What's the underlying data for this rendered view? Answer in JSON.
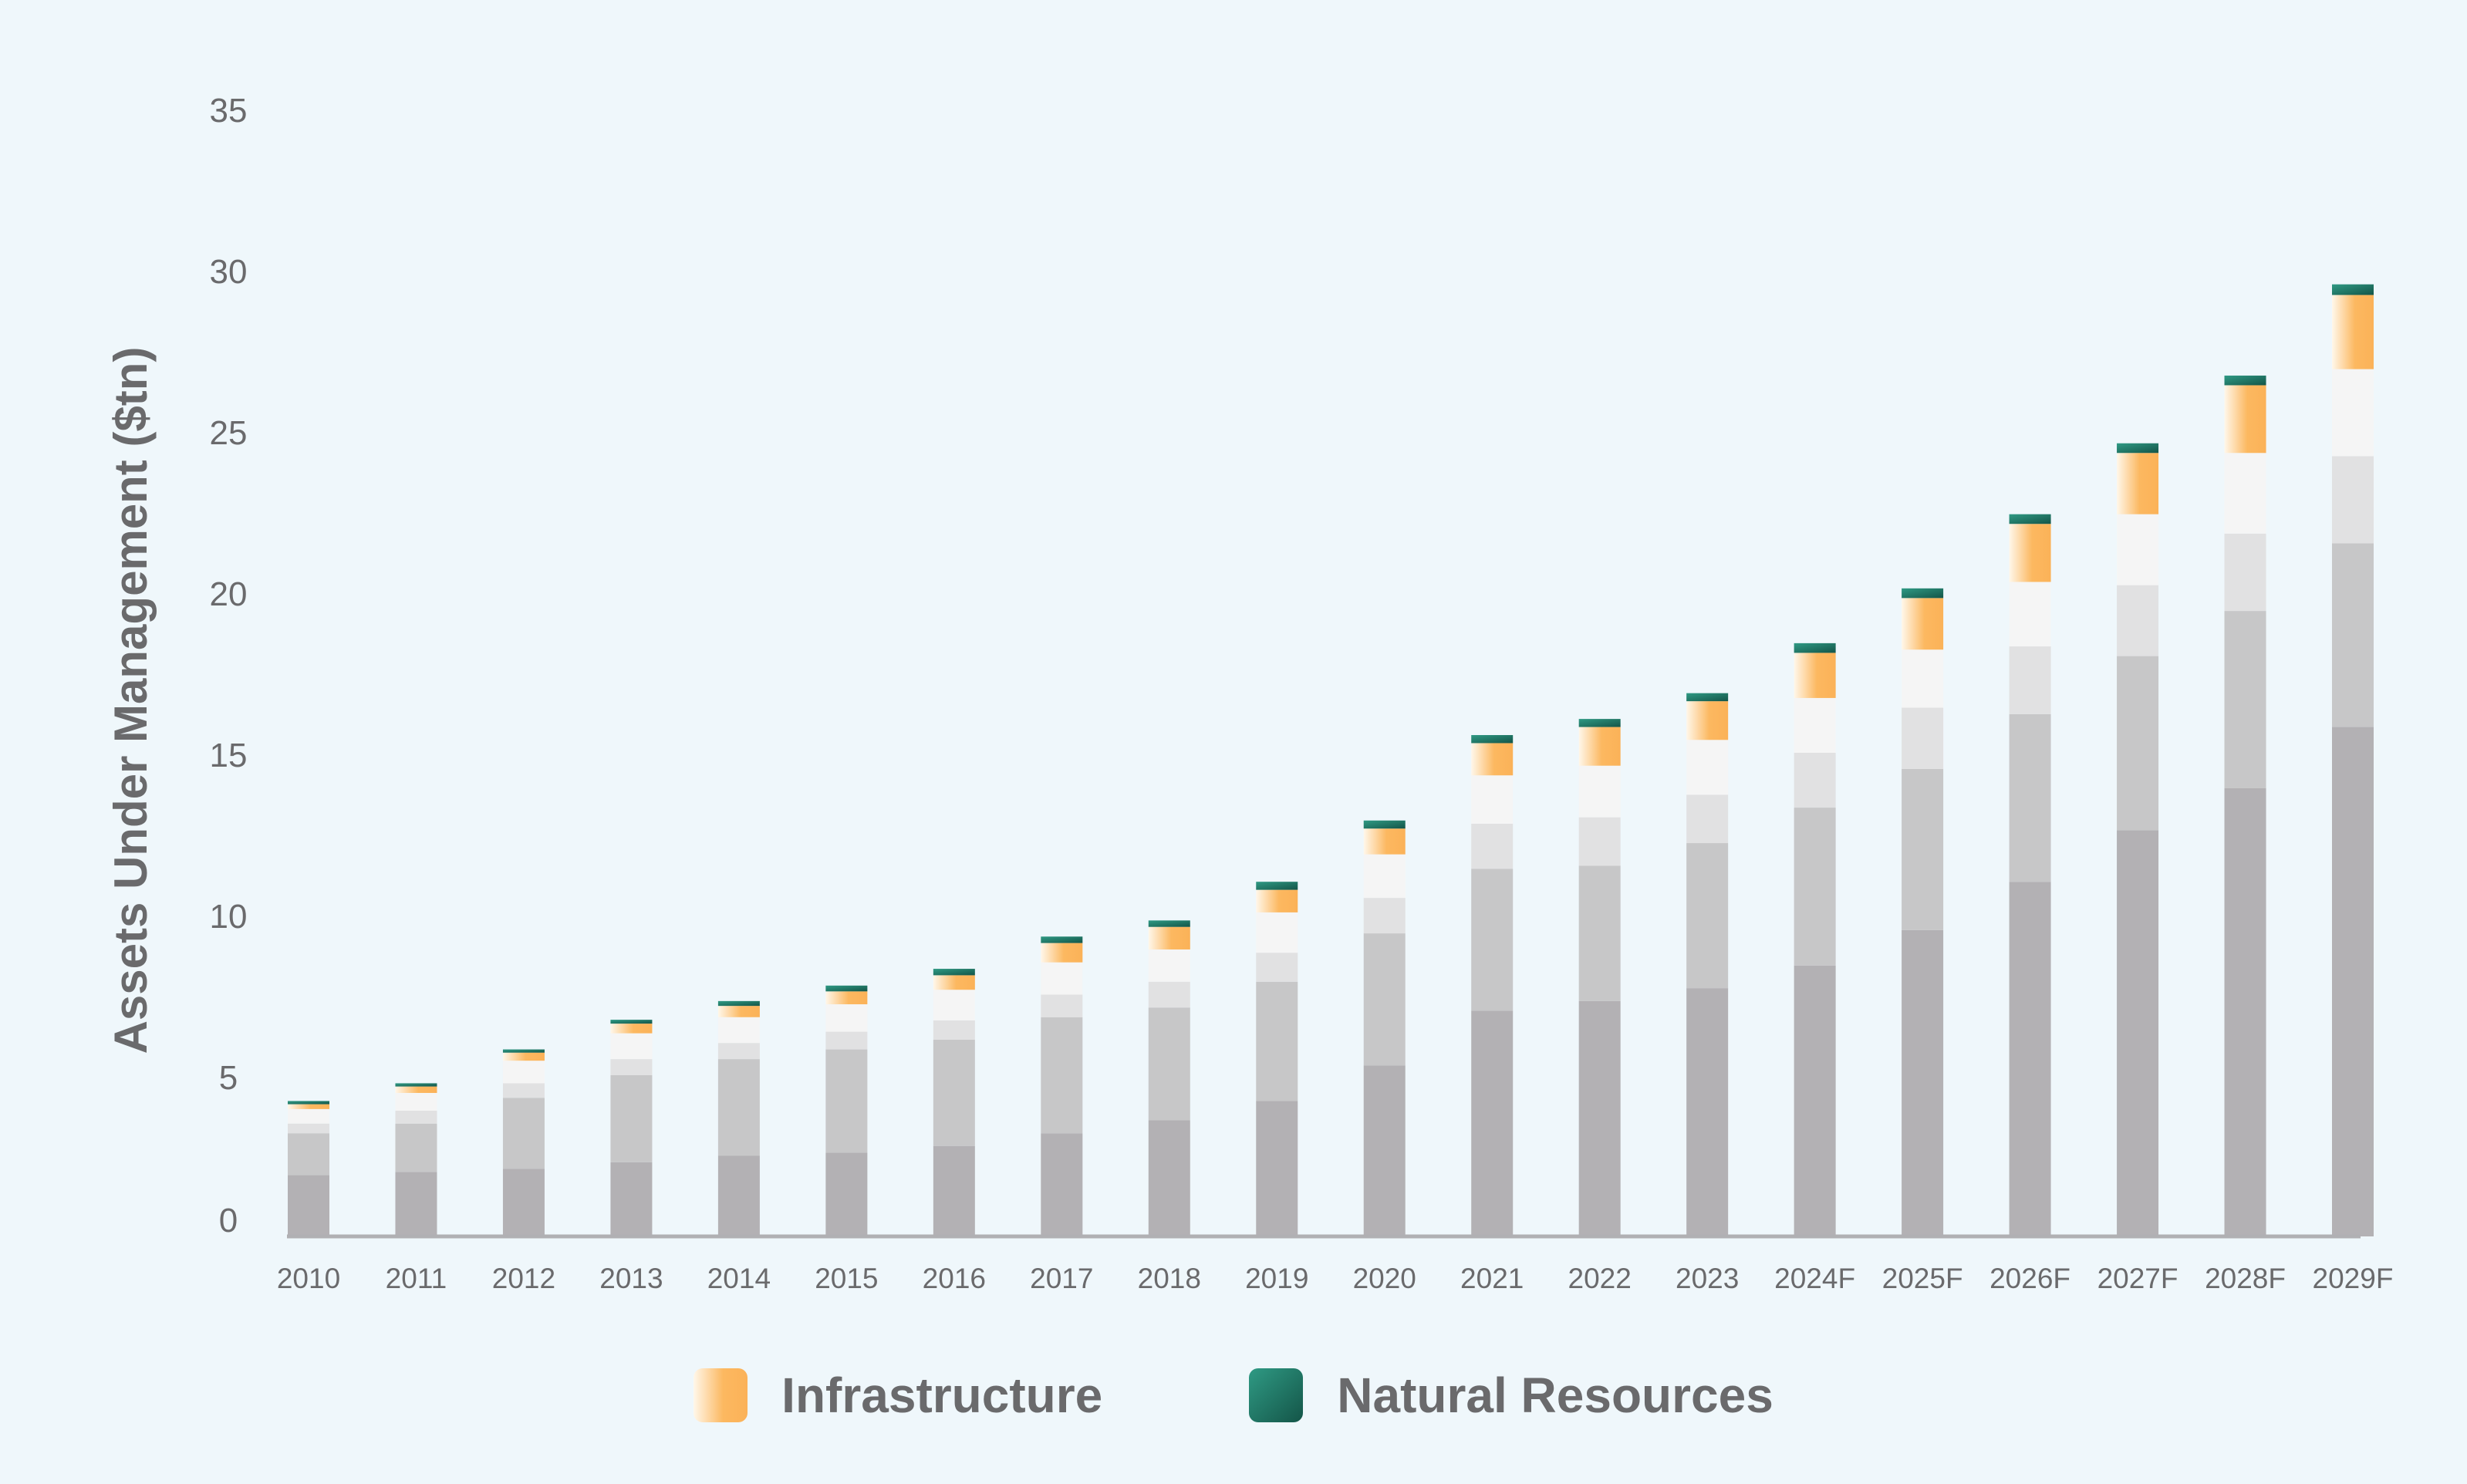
{
  "chart_data": {
    "type": "bar",
    "stacked": true,
    "ylabel": "Assets Under Management ($tn)",
    "ylim": [
      0,
      35
    ],
    "yticks": [
      0,
      5,
      10,
      15,
      20,
      25,
      30,
      35
    ],
    "grid": false,
    "legend_position": "bottom-center",
    "categories": [
      "2010",
      "2011",
      "2012",
      "2013",
      "2014",
      "2015",
      "2016",
      "2017",
      "2018",
      "2019",
      "2020",
      "2021",
      "2022",
      "2023",
      "2024F",
      "2025F",
      "2026F",
      "2027F",
      "2028F",
      "2029F"
    ],
    "series": [
      {
        "values": [
          1.9,
          2.0,
          2.1,
          2.3,
          2.5,
          2.6,
          2.8,
          3.2,
          3.6,
          4.2,
          5.3,
          7.0,
          7.3,
          7.7,
          8.4,
          9.5,
          11.0,
          12.6,
          13.9,
          15.8
        ],
        "color": "#b3b1b4"
      },
      {
        "values": [
          1.3,
          1.5,
          2.2,
          2.7,
          3.0,
          3.2,
          3.3,
          3.6,
          3.5,
          3.7,
          4.1,
          4.4,
          4.2,
          4.5,
          4.9,
          5.0,
          5.2,
          5.4,
          5.5,
          5.7
        ],
        "color": "#c7c7c8"
      },
      {
        "values": [
          0.3,
          0.4,
          0.45,
          0.5,
          0.5,
          0.55,
          0.6,
          0.7,
          0.8,
          0.9,
          1.1,
          1.4,
          1.5,
          1.5,
          1.7,
          1.9,
          2.1,
          2.2,
          2.4,
          2.7
        ],
        "color": "#e1e1e2"
      },
      {
        "values": [
          0.45,
          0.55,
          0.7,
          0.8,
          0.8,
          0.85,
          0.95,
          1.0,
          1.0,
          1.25,
          1.35,
          1.5,
          1.6,
          1.7,
          1.7,
          1.8,
          2.0,
          2.2,
          2.5,
          2.7
        ],
        "color": "#f5f5f5"
      },
      {
        "name": "Infrastructure",
        "values": [
          0.15,
          0.2,
          0.25,
          0.3,
          0.35,
          0.4,
          0.45,
          0.6,
          0.7,
          0.7,
          0.8,
          1.0,
          1.2,
          1.2,
          1.4,
          1.6,
          1.8,
          1.9,
          2.1,
          2.3
        ],
        "color": "#fcb860"
      },
      {
        "name": "Natural Resources",
        "values": [
          0.1,
          0.1,
          0.1,
          0.12,
          0.15,
          0.18,
          0.2,
          0.2,
          0.2,
          0.25,
          0.25,
          0.25,
          0.25,
          0.25,
          0.3,
          0.3,
          0.3,
          0.3,
          0.3,
          0.33
        ],
        "color": "#1f6e5c"
      }
    ]
  }
}
